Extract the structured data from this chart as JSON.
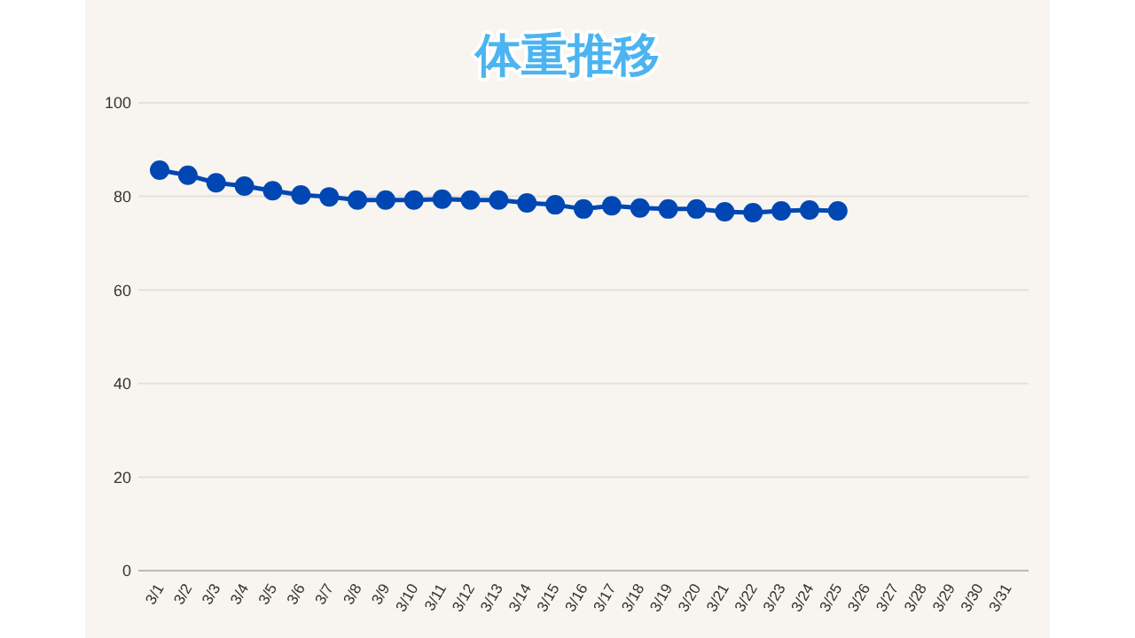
{
  "chart_data": {
    "type": "line",
    "title": "体重推移",
    "categories": [
      "3/1",
      "3/2",
      "3/3",
      "3/4",
      "3/5",
      "3/6",
      "3/7",
      "3/8",
      "3/9",
      "3/10",
      "3/11",
      "3/12",
      "3/13",
      "3/14",
      "3/15",
      "3/16",
      "3/17",
      "3/18",
      "3/19",
      "3/20",
      "3/21",
      "3/22",
      "3/23",
      "3/24",
      "3/25",
      "3/26",
      "3/27",
      "3/28",
      "3/29",
      "3/30",
      "3/31"
    ],
    "series": [
      {
        "color": "#0047b3",
        "values": [
          85.6,
          84.5,
          82.9,
          82.2,
          81.2,
          80.3,
          79.9,
          79.2,
          79.2,
          79.2,
          79.4,
          79.2,
          79.2,
          78.6,
          78.2,
          77.3,
          78,
          77.5,
          77.3,
          77.3,
          76.7,
          76.5,
          76.9,
          77.1,
          76.9,
          null,
          null,
          null,
          null,
          null,
          null
        ]
      }
    ],
    "ylim": [
      0,
      100
    ],
    "yticks": [
      0,
      20,
      40,
      60,
      80,
      100
    ],
    "grid": "y",
    "marker": "circle",
    "line_style": "solid"
  }
}
